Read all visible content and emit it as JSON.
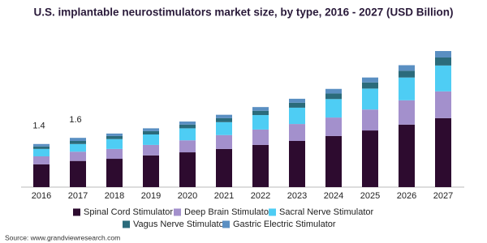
{
  "chart_data": {
    "type": "stacked-bar",
    "title": "U.S. implantable neurostimulators market size, by type, 2016 - 2027 (USD Billion)",
    "categories": [
      "2016",
      "2017",
      "2018",
      "2019",
      "2020",
      "2021",
      "2022",
      "2023",
      "2024",
      "2025",
      "2026",
      "2027"
    ],
    "series": [
      {
        "name": "Spinal Cord Stimulator",
        "color": "#2d0b2f",
        "values": [
          0.74,
          0.85,
          0.92,
          1.03,
          1.13,
          1.24,
          1.37,
          1.5,
          1.66,
          1.84,
          2.03,
          2.24
        ]
      },
      {
        "name": "Deep Brain Stimulator",
        "color": "#a390cc",
        "values": [
          0.26,
          0.3,
          0.32,
          0.34,
          0.39,
          0.45,
          0.5,
          0.55,
          0.6,
          0.68,
          0.79,
          0.87
        ]
      },
      {
        "name": "Sacral Nerve Stimulator",
        "color": "#4ecdf4",
        "values": [
          0.24,
          0.25,
          0.32,
          0.34,
          0.39,
          0.42,
          0.47,
          0.53,
          0.6,
          0.68,
          0.74,
          0.84
        ]
      },
      {
        "name": "Vagus Nerve Stimulator",
        "color": "#2b6b7b",
        "values": [
          0.08,
          0.1,
          0.1,
          0.11,
          0.12,
          0.13,
          0.14,
          0.16,
          0.18,
          0.2,
          0.22,
          0.26
        ]
      },
      {
        "name": "Gastric Electric Stimulator",
        "color": "#5a8fc2",
        "values": [
          0.08,
          0.1,
          0.08,
          0.09,
          0.1,
          0.11,
          0.12,
          0.13,
          0.15,
          0.16,
          0.18,
          0.21
        ]
      }
    ],
    "totals": [
      1.4,
      1.6,
      null,
      null,
      null,
      null,
      null,
      null,
      null,
      null,
      null,
      null
    ],
    "source": "Source: www.grandviewresearch.com"
  }
}
